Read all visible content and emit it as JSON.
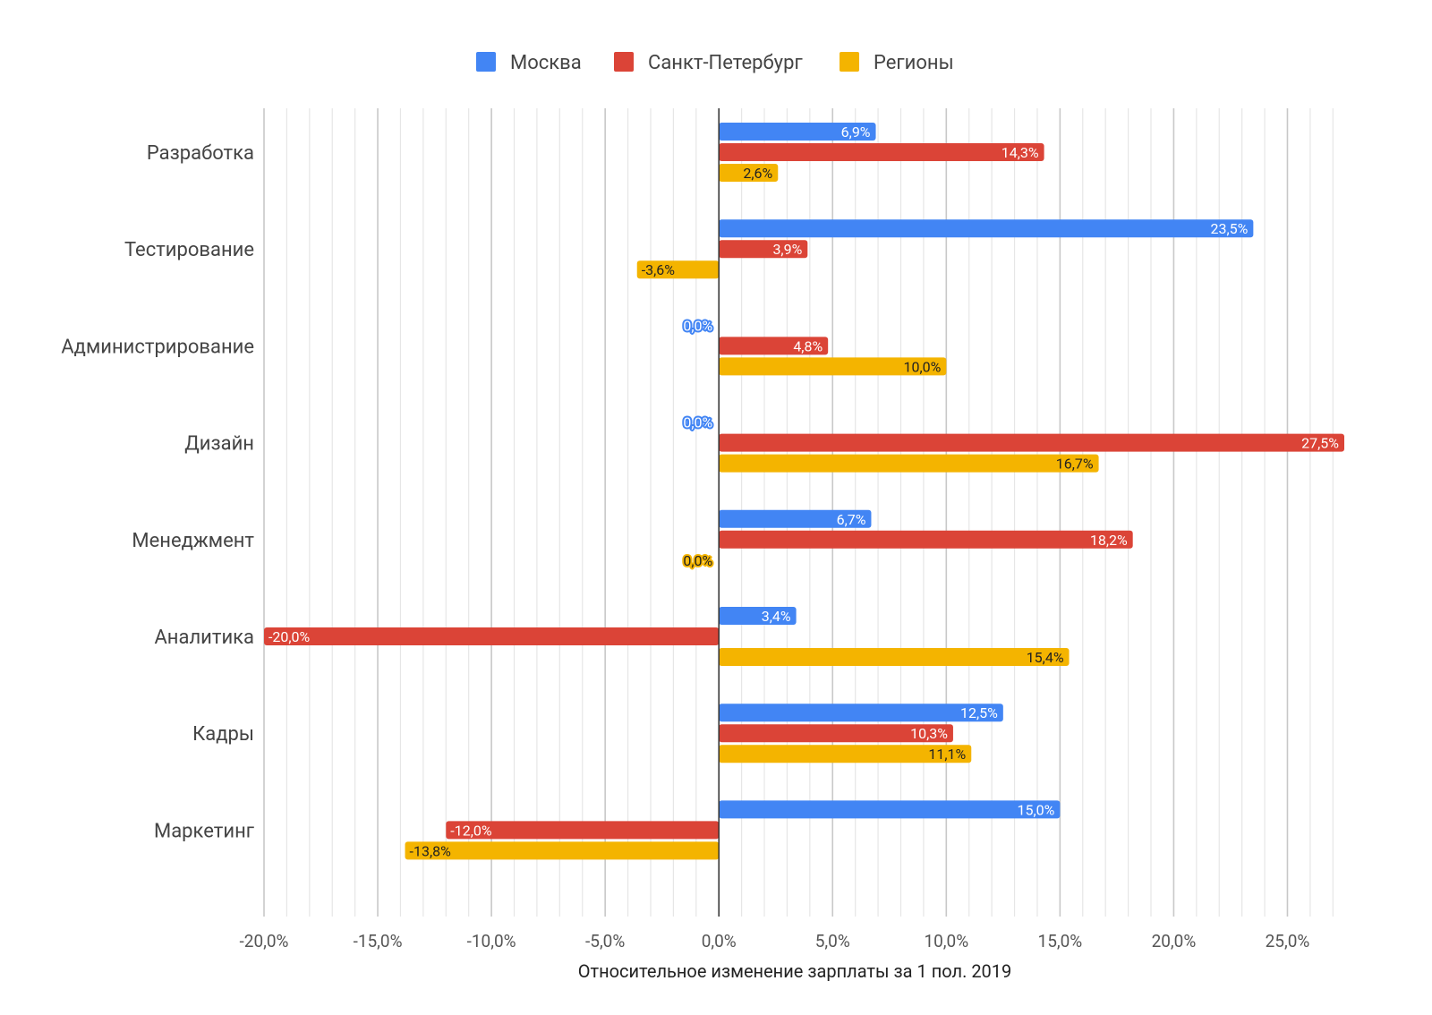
{
  "chart_data": {
    "type": "bar",
    "orientation": "horizontal",
    "title": "",
    "xlabel": "Относительное изменение зарплаты за 1 пол. 2019",
    "ylabel": "",
    "xlim": [
      -20,
      27.5
    ],
    "grid": true,
    "legend_position": "top",
    "categories": [
      "Разработка",
      "Тестирование",
      "Администрирование",
      "Дизайн",
      "Менеджмент",
      "Аналитика",
      "Кадры",
      "Маркетинг"
    ],
    "x_ticks": [
      -20,
      -15,
      -10,
      -5,
      0,
      5,
      10,
      15,
      20,
      25
    ],
    "x_tick_labels": [
      "-20,0%",
      "-15,0%",
      "-10,0%",
      "-5,0%",
      "0,0%",
      "5,0%",
      "10,0%",
      "15,0%",
      "20,0%",
      "25,0%"
    ],
    "series": [
      {
        "name": "Москва",
        "color": "#4285f4",
        "values": [
          6.9,
          23.5,
          0.0,
          0.0,
          6.7,
          3.4,
          12.5,
          15.0
        ],
        "labels": [
          "6,9%",
          "23,5%",
          "0,0%",
          "0,0%",
          "6,7%",
          "3,4%",
          "12,5%",
          "15,0%"
        ]
      },
      {
        "name": "Санкт-Петербург",
        "color": "#db4437",
        "values": [
          14.3,
          3.9,
          4.8,
          27.5,
          18.2,
          -20.0,
          10.3,
          -12.0
        ],
        "labels": [
          "14,3%",
          "3,9%",
          "4,8%",
          "27,5%",
          "18,2%",
          "-20,0%",
          "10,3%",
          "-12,0%"
        ]
      },
      {
        "name": "Регионы",
        "color": "#f4b400",
        "values": [
          2.6,
          -3.6,
          10.0,
          16.7,
          0.0,
          15.4,
          11.1,
          -13.8
        ],
        "labels": [
          "2,6%",
          "-3,6%",
          "10,0%",
          "16,7%",
          "0,0%",
          "15,4%",
          "11,1%",
          "-13,8%"
        ]
      }
    ]
  }
}
